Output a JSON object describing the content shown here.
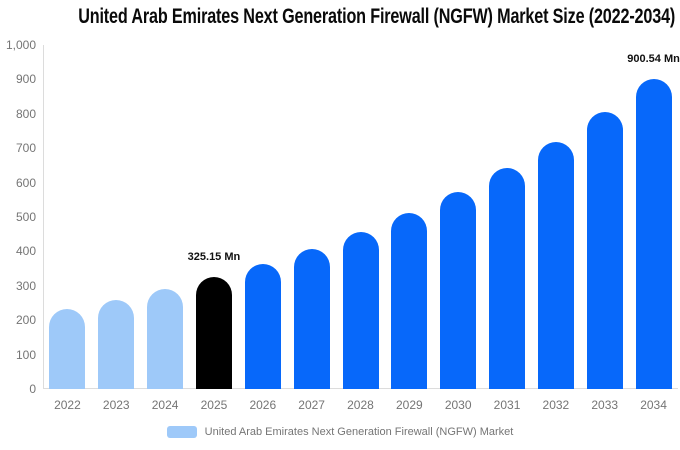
{
  "title": "United Arab Emirates Next Generation Firewall (NGFW) Market Size (2022-2034)",
  "legend": {
    "label": "United Arab Emirates Next Generation Firewall (NGFW) Market",
    "swatch_color": "#9ec9f9"
  },
  "colors": {
    "historical": "#9ec9f9",
    "highlight": "#000000",
    "forecast": "#0768fa",
    "axis_line": "#dcdcdc",
    "axis_text": "#757575",
    "label_text": "#111111"
  },
  "chart_data": {
    "type": "bar",
    "title": "United Arab Emirates Next Generation Firewall (NGFW) Market Size (2022-2034)",
    "xlabel": "",
    "ylabel": "",
    "unit": "Mn",
    "ylim": [
      0,
      1000
    ],
    "grid": false,
    "legend_position": "bottom",
    "ytick_labels": [
      "0",
      "100",
      "200",
      "300",
      "400",
      "500",
      "600",
      "700",
      "800",
      "900",
      "1,000"
    ],
    "categories": [
      "2022",
      "2023",
      "2024",
      "2025",
      "2026",
      "2027",
      "2028",
      "2029",
      "2030",
      "2031",
      "2032",
      "2033",
      "2034"
    ],
    "bars": [
      {
        "year": "2022",
        "value": 231.5,
        "role": "historical"
      },
      {
        "year": "2023",
        "value": 259.3,
        "role": "historical"
      },
      {
        "year": "2024",
        "value": 290.4,
        "role": "historical"
      },
      {
        "year": "2025",
        "value": 325.15,
        "role": "highlight",
        "label": "325.15 Mn"
      },
      {
        "year": "2026",
        "value": 364.1,
        "role": "forecast"
      },
      {
        "year": "2027",
        "value": 407.7,
        "role": "forecast"
      },
      {
        "year": "2028",
        "value": 456.6,
        "role": "forecast"
      },
      {
        "year": "2029",
        "value": 511.3,
        "role": "forecast"
      },
      {
        "year": "2030",
        "value": 572.6,
        "role": "forecast"
      },
      {
        "year": "2031",
        "value": 641.2,
        "role": "forecast"
      },
      {
        "year": "2032",
        "value": 718.0,
        "role": "forecast"
      },
      {
        "year": "2033",
        "value": 804.1,
        "role": "forecast"
      },
      {
        "year": "2034",
        "value": 900.54,
        "role": "forecast",
        "label": "900.54 Mn"
      }
    ]
  }
}
